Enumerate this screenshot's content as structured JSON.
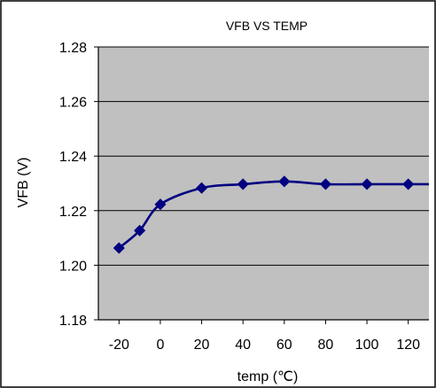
{
  "chart_data": {
    "type": "line",
    "title": "VFB VS TEMP",
    "xlabel": "temp (℃)",
    "ylabel": "VFB (V)",
    "x_ticks": [
      "-20",
      "0",
      "20",
      "40",
      "60",
      "80",
      "100",
      "120"
    ],
    "y_ticks": [
      "1.18",
      "1.20",
      "1.22",
      "1.24",
      "1.26",
      "1.28"
    ],
    "xlim": [
      -30,
      130
    ],
    "ylim": [
      1.18,
      1.28
    ],
    "grid": "horizontal",
    "legend": "none",
    "series": [
      {
        "x": [
          -20,
          -10,
          0,
          20,
          40,
          60,
          80,
          100,
          120
        ],
        "values": [
          1.2063,
          1.2127,
          1.2223,
          1.2283,
          1.2297,
          1.2307,
          1.2297,
          1.2297,
          1.2297
        ]
      }
    ]
  },
  "colors": {
    "plot_background": "#c0c0c0",
    "series": "#000080",
    "gridline": "#000000",
    "frame": "#000000"
  }
}
